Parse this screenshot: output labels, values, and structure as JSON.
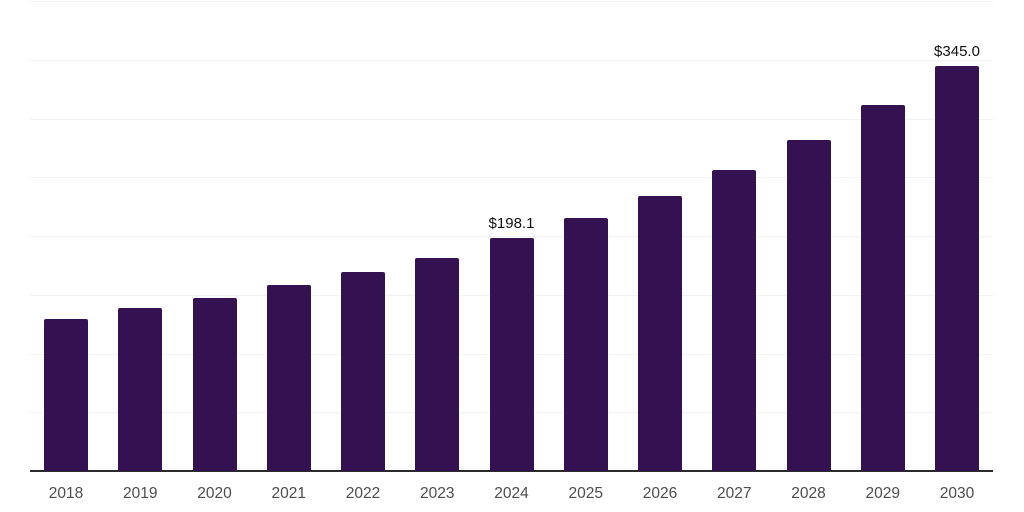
{
  "chart_data": {
    "type": "bar",
    "title": "",
    "xlabel": "",
    "ylabel": "",
    "categories": [
      "2018",
      "2019",
      "2020",
      "2021",
      "2022",
      "2023",
      "2024",
      "2025",
      "2026",
      "2027",
      "2028",
      "2029",
      "2030"
    ],
    "values": [
      129.7,
      138.4,
      147.6,
      158.4,
      169.6,
      181.6,
      198.1,
      215.0,
      234.3,
      256.1,
      281.5,
      311.5,
      345.0
    ],
    "value_labels": [
      "",
      "",
      "",
      "",
      "",
      "",
      "$198.1",
      "",
      "",
      "",
      "",
      "",
      "$345.0"
    ],
    "ylim": [
      0,
      400
    ],
    "gridline_step": 50,
    "grid": true,
    "legend_position": "none",
    "y_axis_tick_labels_visible": false,
    "colors": {
      "bar": "#341150",
      "gridline": "#f2f2f2",
      "axis_line": "#2b2b2b",
      "x_tick_label": "#4d4d4d",
      "value_label": "#111111",
      "background": "#ffffff"
    }
  }
}
